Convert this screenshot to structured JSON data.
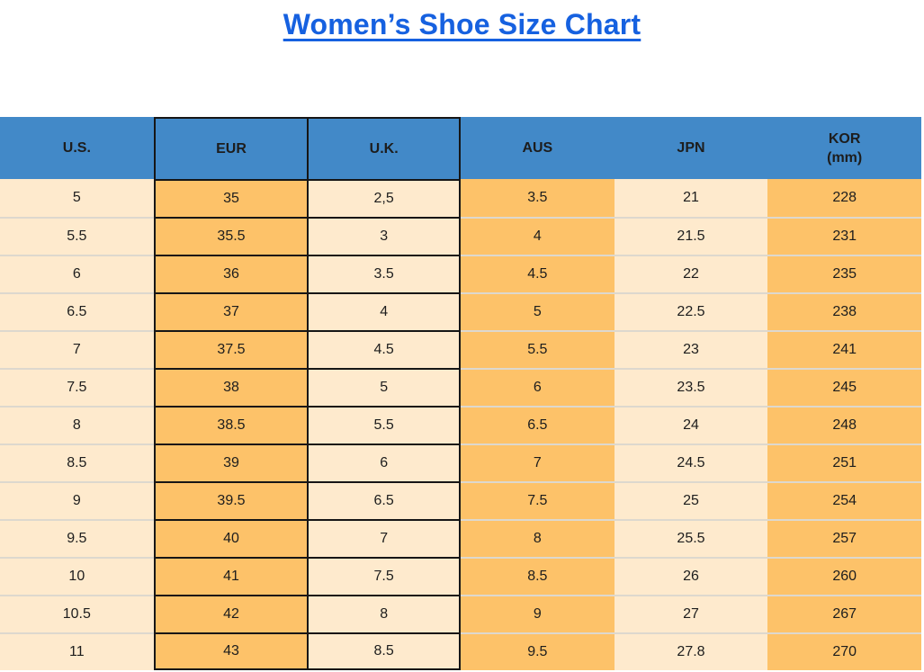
{
  "page_title": "Women’s Shoe Size Chart",
  "colors": {
    "title_blue": "#1661e0",
    "header_blue": "#4289c8",
    "orange": "#fdc269",
    "cream": "#feeacd",
    "cell_border_black": "#161616",
    "row_separator": "#ddd8ce",
    "text": "#1d1d1d"
  },
  "chart_data": {
    "type": "table",
    "title": "Women’s Shoe Size Chart",
    "columns": [
      {
        "key": "us",
        "label": "U.S.",
        "sublabel": "",
        "fill": "cream",
        "bordered": false
      },
      {
        "key": "eur",
        "label": "EUR",
        "sublabel": "",
        "fill": "orange",
        "bordered": true
      },
      {
        "key": "uk",
        "label": "U.K.",
        "sublabel": "",
        "fill": "cream",
        "bordered": true
      },
      {
        "key": "aus",
        "label": "AUS",
        "sublabel": "",
        "fill": "orange",
        "bordered": false
      },
      {
        "key": "jpn",
        "label": "JPN",
        "sublabel": "",
        "fill": "cream",
        "bordered": false
      },
      {
        "key": "kor",
        "label": "KOR",
        "sublabel": "(mm)",
        "fill": "orange",
        "bordered": false
      }
    ],
    "rows": [
      [
        "5",
        "35",
        "2,5",
        "3.5",
        "21",
        "228"
      ],
      [
        "5.5",
        "35.5",
        "3",
        "4",
        "21.5",
        "231"
      ],
      [
        "6",
        "36",
        "3.5",
        "4.5",
        "22",
        "235"
      ],
      [
        "6.5",
        "37",
        "4",
        "5",
        "22.5",
        "238"
      ],
      [
        "7",
        "37.5",
        "4.5",
        "5.5",
        "23",
        "241"
      ],
      [
        "7.5",
        "38",
        "5",
        "6",
        "23.5",
        "245"
      ],
      [
        "8",
        "38.5",
        "5.5",
        "6.5",
        "24",
        "248"
      ],
      [
        "8.5",
        "39",
        "6",
        "7",
        "24.5",
        "251"
      ],
      [
        "9",
        "39.5",
        "6.5",
        "7.5",
        "25",
        "254"
      ],
      [
        "9.5",
        "40",
        "7",
        "8",
        "25.5",
        "257"
      ],
      [
        "10",
        "41",
        "7.5",
        "8.5",
        "26",
        "260"
      ],
      [
        "10.5",
        "42",
        "8",
        "9",
        "27",
        "267"
      ],
      [
        "11",
        "43",
        "8.5",
        "9.5",
        "27.8",
        "270"
      ]
    ]
  }
}
